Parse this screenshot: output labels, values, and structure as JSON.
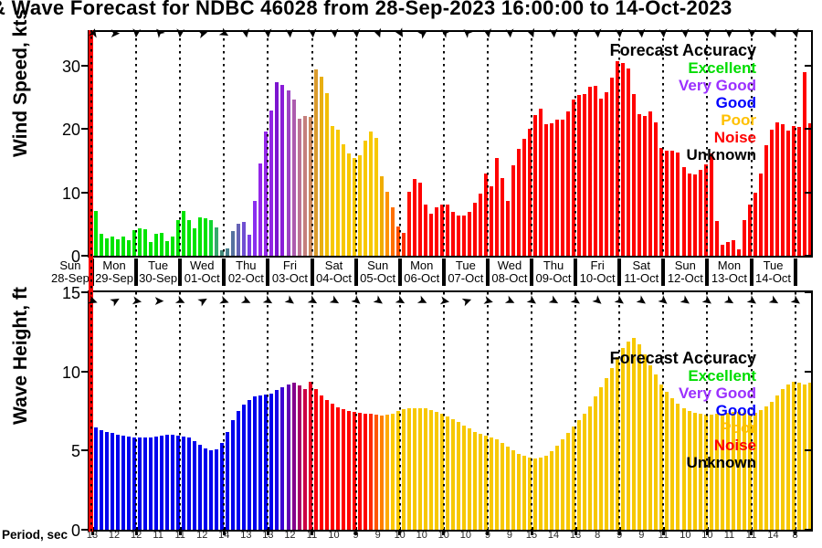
{
  "title": "& Wave Forecast for NDBC 46028 from 28-Sep-2023 16:00:00 to 14-Oct-2023",
  "now_marker": {
    "color": "#ff0000"
  },
  "legend": {
    "title": "Forecast Accuracy",
    "items": [
      {
        "label": "Excellent",
        "color": "#00dd00"
      },
      {
        "label": "Very Good",
        "color": "#9b30ff"
      },
      {
        "label": "Good",
        "color": "#0000ff"
      },
      {
        "label": "Poor",
        "color": "#ffc000"
      },
      {
        "label": "Noise",
        "color": "#ff0000"
      },
      {
        "label": "Unknown",
        "color": "#000000"
      }
    ]
  },
  "x_axis": {
    "days": [
      {
        "name": "Sun",
        "date": "28-Sep"
      },
      {
        "name": "Mon",
        "date": "29-Sep"
      },
      {
        "name": "Tue",
        "date": "30-Sep"
      },
      {
        "name": "Wed",
        "date": "01-Oct"
      },
      {
        "name": "Thu",
        "date": "02-Oct"
      },
      {
        "name": "Fri",
        "date": "03-Oct"
      },
      {
        "name": "Sat",
        "date": "04-Oct"
      },
      {
        "name": "Sun",
        "date": "05-Oct"
      },
      {
        "name": "Mon",
        "date": "06-Oct"
      },
      {
        "name": "Tue",
        "date": "07-Oct"
      },
      {
        "name": "Wed",
        "date": "08-Oct"
      },
      {
        "name": "Thu",
        "date": "09-Oct"
      },
      {
        "name": "Fri",
        "date": "10-Oct"
      },
      {
        "name": "Sat",
        "date": "11-Oct"
      },
      {
        "name": "Sun",
        "date": "12-Oct"
      },
      {
        "name": "Mon",
        "date": "13-Oct"
      },
      {
        "name": "Tue",
        "date": "14-Oct"
      }
    ]
  },
  "period_axis": {
    "label": "Period, sec",
    "values": [
      13,
      12,
      12,
      11,
      11,
      12,
      14,
      13,
      13,
      12,
      11,
      10,
      9,
      9,
      10,
      10,
      10,
      10,
      9,
      9,
      15,
      14,
      13,
      8,
      9,
      9,
      11,
      10,
      10,
      11,
      11,
      14,
      8
    ]
  },
  "chart_data": [
    {
      "type": "bar",
      "panel": "wind",
      "ylabel": "Wind Speed, kts",
      "yticks": [
        0,
        10,
        20,
        30
      ],
      "ylim": [
        0,
        35.3
      ],
      "time_start": "28-Sep-2023 16:00:00",
      "time_end": "14-Oct-2023",
      "step_hours": 3,
      "grid": "vertical-dotted-daily",
      "legend_position": "upper-right",
      "values": [
        8.2,
        7.0,
        3.4,
        2.8,
        3.1,
        2.6,
        3.0,
        2.5,
        4.0,
        4.3,
        4.2,
        2.1,
        3.4,
        3.6,
        2.3,
        3.1,
        5.6,
        7.1,
        5.6,
        4.3,
        6.1,
        5.9,
        5.6,
        4.4,
        0.9,
        1.1,
        3.9,
        5.1,
        5.4,
        3.3,
        8.6,
        14.6,
        19.6,
        22.9,
        27.4,
        26.9,
        26.1,
        24.6,
        21.6,
        22.1,
        21.9,
        29.4,
        28.2,
        25.6,
        20.4,
        19.9,
        17.6,
        16.1,
        15.4,
        15.9,
        18.1,
        19.6,
        18.6,
        12.6,
        10.1,
        7.6,
        4.6,
        3.6,
        10.1,
        12.1,
        11.6,
        8.1,
        6.6,
        7.6,
        8.1,
        8.1,
        6.9,
        6.3,
        6.3,
        6.9,
        8.3,
        9.8,
        12.9,
        11.0,
        15.4,
        12.3,
        8.7,
        14.2,
        16.8,
        18.4,
        20.1,
        22.2,
        23.2,
        20.8,
        20.9,
        21.5,
        21.4,
        22.7,
        24.6,
        25.3,
        25.5,
        26.7,
        26.8,
        24.8,
        25.8,
        28.1,
        30.7,
        30.4,
        29.5,
        25.5,
        22.3,
        22.1,
        22.8,
        21.0,
        17.0,
        16.5,
        16.5,
        16.3,
        14.0,
        13.0,
        12.8,
        13.5,
        14.4,
        16.1,
        5.5,
        1.7,
        2.1,
        2.5,
        1.0,
        5.6,
        8.1,
        9.9,
        12.9,
        17.5,
        19.9,
        21.0,
        20.8,
        19.8,
        20.5,
        20.3,
        29.0,
        20.9
      ],
      "bar_colors": [
        "#00e400",
        "#00e400",
        "#00e400",
        "#00e400",
        "#00e400",
        "#00e400",
        "#00e400",
        "#00e400",
        "#00e400",
        "#00e400",
        "#00e400",
        "#00e400",
        "#00e400",
        "#00e400",
        "#00e400",
        "#00e400",
        "#00e400",
        "#00e400",
        "#00e400",
        "#00e400",
        "#00e400",
        "#00e400",
        "#12d532",
        "#35a96b",
        "#3f8878",
        "#457f8c",
        "#56719f",
        "#6663b6",
        "#6f4fd2",
        "#7d3de6",
        "#8a2ef0",
        "#9326e8",
        "#9326e8",
        "#9126e4",
        "#7b14cf",
        "#8a1bd8",
        "#9c41c4",
        "#ad5cae",
        "#bc7394",
        "#c47f7c",
        "#cc8a60",
        "#d99b2e",
        "#e8ae12",
        "#f2bd04",
        "#f7c800",
        "#f7c800",
        "#f7c800",
        "#f7c800",
        "#f7c800",
        "#f7c800",
        "#f7c800",
        "#f7c800",
        "#f7c800",
        "#f0ad00",
        "#ff9100",
        "#ff7000",
        "#ff5000",
        "#ff3000",
        "#ff1000",
        "#ff0000",
        "#ff0000",
        "#ff0000",
        "#ff0000",
        "#ff0000",
        "#ff0000",
        "#ff0000",
        "#ff0000",
        "#ff0000",
        "#ff0000",
        "#ff0000",
        "#ff0000",
        "#ff0000",
        "#ff0000",
        "#ff0000",
        "#ff0000",
        "#ff0000",
        "#ff0000",
        "#ff0000",
        "#ff0000",
        "#ff0000",
        "#ff0000",
        "#ff0000",
        "#ff0000",
        "#ff0000",
        "#ff0000",
        "#ff0000",
        "#ff0000",
        "#ff0000",
        "#ff0000",
        "#ff0000",
        "#ff0000",
        "#ff0000",
        "#ff0000",
        "#ff0000",
        "#ff0000",
        "#ff0000",
        "#ff0000",
        "#ff0000",
        "#ff0000",
        "#ff0000",
        "#ff0000",
        "#ff0000",
        "#ff0000",
        "#ff0000",
        "#ff0000",
        "#ff0000",
        "#ff0000",
        "#ff0000",
        "#ff0000",
        "#ff0000",
        "#ff0000",
        "#ff0000",
        "#ff0000",
        "#ff0000",
        "#ff0000",
        "#ff0000",
        "#ff0000",
        "#ff0000",
        "#ff0000",
        "#ff0000",
        "#ff0000",
        "#ff0000",
        "#ff0000",
        "#ff0000",
        "#ff0000",
        "#ff0000",
        "#ff0000",
        "#ff0000",
        "#ff0000",
        "#ff0000",
        "#ff0000",
        "#ff0000"
      ],
      "direction_arrows_deg": [
        -75,
        0,
        95,
        -130,
        95,
        -15,
        30,
        80,
        85,
        85,
        85,
        85,
        85,
        70,
        60,
        -35,
        -145,
        -140,
        80,
        85,
        70,
        85,
        85,
        85,
        85,
        85,
        85,
        85,
        85,
        90,
        95,
        70,
        75
      ]
    },
    {
      "type": "bar",
      "panel": "wave",
      "ylabel": "Wave Height, ft",
      "yticks": [
        0,
        5,
        10,
        15
      ],
      "ylim": [
        0,
        15
      ],
      "step_hours": 3,
      "grid": "vertical-dotted-daily",
      "legend_position": "upper-right",
      "values": [
        6.5,
        6.45,
        6.3,
        6.2,
        6.1,
        6.0,
        5.95,
        5.9,
        5.85,
        5.8,
        5.8,
        5.85,
        5.9,
        5.95,
        6.0,
        6.0,
        5.95,
        5.9,
        5.8,
        5.6,
        5.35,
        5.15,
        5.0,
        5.1,
        5.5,
        6.2,
        6.9,
        7.5,
        7.9,
        8.2,
        8.4,
        8.5,
        8.55,
        8.6,
        8.8,
        9.0,
        9.2,
        9.3,
        9.1,
        8.9,
        9.35,
        8.9,
        8.5,
        8.2,
        7.95,
        7.75,
        7.6,
        7.5,
        7.45,
        7.4,
        7.35,
        7.3,
        7.25,
        7.2,
        7.25,
        7.35,
        7.5,
        7.6,
        7.65,
        7.7,
        7.7,
        7.65,
        7.55,
        7.45,
        7.3,
        7.15,
        7.0,
        6.8,
        6.6,
        6.4,
        6.2,
        6.05,
        5.95,
        5.85,
        5.7,
        5.5,
        5.25,
        5.0,
        4.8,
        4.65,
        4.55,
        4.5,
        4.55,
        4.7,
        4.95,
        5.3,
        5.7,
        6.1,
        6.5,
        6.9,
        7.3,
        7.8,
        8.4,
        9.0,
        9.6,
        10.2,
        10.9,
        11.5,
        11.9,
        12.1,
        11.7,
        11.1,
        10.4,
        9.8,
        9.2,
        8.7,
        8.3,
        7.95,
        7.7,
        7.5,
        7.4,
        7.3,
        7.25,
        7.25,
        7.3,
        7.35,
        7.4,
        7.45,
        7.45,
        7.4,
        7.35,
        7.4,
        7.55,
        7.8,
        8.1,
        8.5,
        8.9,
        9.2,
        9.35,
        9.3,
        9.2,
        9.3
      ],
      "bar_colors": [
        "#0000ee",
        "#0000ee",
        "#0000ee",
        "#0000ee",
        "#0000ee",
        "#0000ee",
        "#0000ee",
        "#0000ee",
        "#0000ee",
        "#0000ee",
        "#0000ee",
        "#0000ee",
        "#0000ee",
        "#0000ee",
        "#0000ee",
        "#0000ee",
        "#0000ee",
        "#0000ee",
        "#0000ee",
        "#0000ee",
        "#0000ee",
        "#0000ee",
        "#0000ee",
        "#0000ee",
        "#0000ee",
        "#0000ee",
        "#0000ee",
        "#0000ee",
        "#0000ee",
        "#0000ee",
        "#0000ee",
        "#0000ee",
        "#0000ee",
        "#0000ee",
        "#1500e8",
        "#3c00d4",
        "#6000b4",
        "#84008c",
        "#a80068",
        "#cc0044",
        "#e80022",
        "#fa000c",
        "#ff0000",
        "#ff0000",
        "#ff0000",
        "#ff0000",
        "#ff0000",
        "#ff0000",
        "#ff0000",
        "#ff0000",
        "#ff0000",
        "#ff2a00",
        "#ff5500",
        "#ff8000",
        "#ffaa00",
        "#fec800",
        "#f7c800",
        "#f7c800",
        "#f7c800",
        "#f7c800",
        "#f7c800",
        "#f7c800",
        "#f7c800",
        "#f7c800",
        "#f7c800",
        "#f7c800",
        "#f7c800",
        "#f7c800",
        "#f7c800",
        "#f7c800",
        "#f7c800",
        "#f7c800",
        "#f7c800",
        "#f7c800",
        "#f7c800",
        "#f7c800",
        "#f7c800",
        "#f7c800",
        "#f7c800",
        "#f7c800",
        "#f7c800",
        "#f7c800",
        "#f7c800",
        "#f7c800",
        "#f7c800",
        "#f7c800",
        "#f7c800",
        "#f7c800",
        "#f7c800",
        "#f7c800",
        "#f7c800",
        "#f7c800",
        "#f7c800",
        "#f7c800",
        "#f7c800",
        "#f7c800",
        "#f7c800",
        "#f7c800",
        "#f7c800",
        "#f7c800",
        "#f7c800",
        "#f7c800",
        "#f7c800",
        "#f7c800",
        "#f7c800",
        "#f7c800",
        "#f7c800",
        "#f7c800",
        "#f7c800",
        "#f7c800",
        "#f7c800",
        "#f7c800",
        "#f7c800",
        "#f7c800",
        "#f7c800",
        "#f7c800",
        "#f7c800",
        "#f7c800",
        "#f7c800",
        "#f7c800",
        "#f7c800",
        "#f7c800",
        "#f7c800",
        "#f7c800",
        "#f7c800",
        "#f7c800",
        "#f7c800",
        "#f7c800",
        "#f7c800",
        "#f7c800",
        "#f7c800",
        "#f7c800"
      ],
      "direction_arrows_deg": [
        20,
        -30,
        10,
        0,
        25,
        -30,
        20,
        25,
        30,
        35,
        30,
        30,
        40,
        35,
        30,
        25,
        10,
        -20,
        15,
        25,
        35,
        30,
        35,
        40,
        35,
        35,
        40,
        35,
        35,
        30,
        35,
        30,
        35
      ]
    }
  ]
}
